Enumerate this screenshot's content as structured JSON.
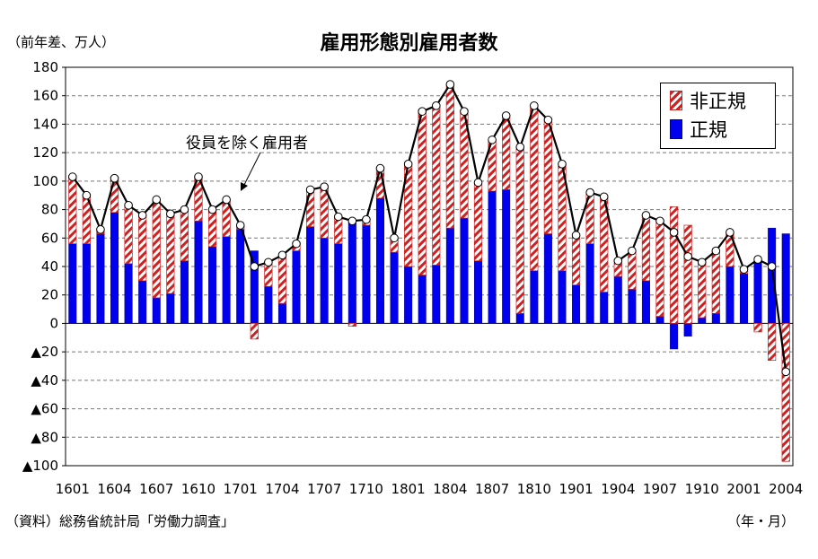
{
  "header": {
    "title": "雇用形態別雇用者数",
    "unit_label": "（前年差、万人）"
  },
  "footer": {
    "source": "（資料）総務省統計局「労働力調査」",
    "x_unit": "（年・月）"
  },
  "legend": {
    "items": [
      {
        "label": "非正規",
        "style": "hatched",
        "color": "#cc2222"
      },
      {
        "label": "正規",
        "style": "solid",
        "color": "#0000ee"
      }
    ]
  },
  "annotation": {
    "label": "役員を除く雇用者"
  },
  "chart_data": {
    "type": "bar",
    "stacked": true,
    "ylim": [
      -100,
      180
    ],
    "yticks": [
      180,
      160,
      140,
      120,
      100,
      80,
      60,
      40,
      20,
      0,
      -20,
      -40,
      -60,
      -80,
      -100
    ],
    "ytick_labels": [
      "180",
      "160",
      "140",
      "120",
      "100",
      "80",
      "60",
      "40",
      "20",
      "0",
      "▲20",
      "▲40",
      "▲60",
      "▲80",
      "▲100"
    ],
    "grid": true,
    "legend_position": "top-right",
    "categories": [
      "1601",
      "1602",
      "1603",
      "1604",
      "1605",
      "1606",
      "1607",
      "1608",
      "1609",
      "1610",
      "1611",
      "1612",
      "1701",
      "1702",
      "1703",
      "1704",
      "1705",
      "1706",
      "1707",
      "1708",
      "1709",
      "1710",
      "1711",
      "1712",
      "1801",
      "1802",
      "1803",
      "1804",
      "1805",
      "1806",
      "1807",
      "1808",
      "1809",
      "1810",
      "1811",
      "1812",
      "1901",
      "1902",
      "1903",
      "1904",
      "1905",
      "1906",
      "1907",
      "1908",
      "1909",
      "1910",
      "1911",
      "1912",
      "2001",
      "2002",
      "2003",
      "2004"
    ],
    "xtick_labels": [
      "1601",
      "1604",
      "1607",
      "1610",
      "1701",
      "1704",
      "1707",
      "1710",
      "1801",
      "1804",
      "1807",
      "1810",
      "1901",
      "1904",
      "1907",
      "1910",
      "2001",
      "2004"
    ],
    "series": [
      {
        "name": "正規",
        "color": "#0000ee",
        "values": [
          56,
          56,
          63,
          78,
          42,
          30,
          18,
          21,
          44,
          72,
          54,
          61,
          66,
          51,
          26,
          14,
          51,
          68,
          60,
          56,
          71,
          69,
          88,
          50,
          40,
          34,
          41,
          67,
          74,
          44,
          93,
          94,
          7,
          37,
          63,
          37,
          27,
          56,
          22,
          33,
          24,
          30,
          5,
          -18,
          -9,
          4,
          7,
          40,
          35,
          44,
          67,
          63
        ]
      },
      {
        "name": "非正規",
        "color": "#cc2222",
        "values": [
          47,
          34,
          3,
          24,
          41,
          46,
          69,
          56,
          36,
          31,
          26,
          26,
          3,
          -11,
          17,
          34,
          5,
          26,
          36,
          19,
          -2,
          4,
          21,
          10,
          72,
          115,
          112,
          101,
          75,
          55,
          36,
          52,
          117,
          116,
          80,
          75,
          35,
          36,
          67,
          11,
          27,
          46,
          67,
          82,
          69,
          39,
          44,
          24,
          3,
          -6,
          -26,
          -97
        ]
      }
    ],
    "line": {
      "name": "役員を除く雇用者",
      "values": [
        103,
        90,
        66,
        102,
        83,
        76,
        87,
        77,
        80,
        103,
        80,
        87,
        69,
        40,
        43,
        48,
        56,
        94,
        96,
        75,
        72,
        73,
        109,
        60,
        112,
        149,
        153,
        168,
        149,
        99,
        129,
        146,
        124,
        153,
        143,
        112,
        62,
        92,
        89,
        44,
        51,
        76,
        72,
        64,
        47,
        43,
        51,
        64,
        38,
        45,
        40,
        -34
      ]
    }
  }
}
